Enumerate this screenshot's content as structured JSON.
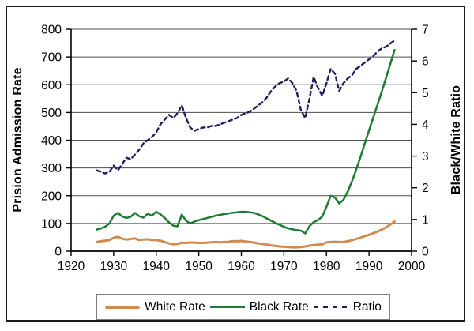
{
  "chart_data": {
    "type": "line",
    "title": "",
    "x": [
      1926,
      1927,
      1928,
      1929,
      1930,
      1931,
      1932,
      1933,
      1934,
      1935,
      1936,
      1937,
      1938,
      1939,
      1940,
      1941,
      1942,
      1943,
      1944,
      1945,
      1946,
      1947,
      1948,
      1949,
      1950,
      1951,
      1952,
      1953,
      1954,
      1955,
      1956,
      1957,
      1958,
      1959,
      1960,
      1961,
      1962,
      1963,
      1964,
      1965,
      1966,
      1967,
      1968,
      1969,
      1970,
      1971,
      1972,
      1973,
      1974,
      1975,
      1976,
      1977,
      1978,
      1979,
      1980,
      1981,
      1982,
      1983,
      1984,
      1985,
      1986,
      1987,
      1988,
      1989,
      1990,
      1991,
      1992,
      1993,
      1994,
      1995,
      1996
    ],
    "series": [
      {
        "name": "White Rate",
        "axis": "left",
        "color": "#d28a4e",
        "style": "solid",
        "width": 3,
        "values": [
          33,
          36,
          38,
          40,
          48,
          52,
          45,
          42,
          44,
          46,
          40,
          42,
          43,
          40,
          40,
          38,
          33,
          28,
          25,
          26,
          31,
          30,
          31,
          31,
          30,
          30,
          31,
          32,
          33,
          32,
          33,
          34,
          36,
          36,
          37,
          35,
          33,
          31,
          28,
          26,
          24,
          21,
          19,
          17,
          16,
          15,
          14,
          14,
          15,
          17,
          20,
          22,
          23,
          25,
          32,
          33,
          34,
          33,
          33,
          36,
          40,
          44,
          49,
          54,
          59,
          65,
          71,
          78,
          86,
          96,
          107
        ]
      },
      {
        "name": "Black Rate",
        "axis": "left",
        "color": "#1e7b33",
        "style": "solid",
        "width": 2.5,
        "values": [
          78,
          82,
          88,
          100,
          128,
          138,
          125,
          120,
          124,
          138,
          126,
          121,
          135,
          128,
          142,
          133,
          120,
          104,
          92,
          90,
          132,
          110,
          100,
          107,
          112,
          116,
          120,
          124,
          128,
          131,
          134,
          136,
          139,
          140,
          142,
          142,
          140,
          138,
          132,
          126,
          118,
          110,
          102,
          95,
          88,
          82,
          79,
          76,
          74,
          64,
          90,
          105,
          112,
          125,
          160,
          200,
          193,
          172,
          185,
          215,
          252,
          295,
          340,
          388,
          435,
          482,
          528,
          576,
          625,
          675,
          725
        ]
      },
      {
        "name": "Ratio",
        "axis": "right",
        "color": "#1f1f5e",
        "style": "dashed",
        "width": 2.4,
        "values": [
          2.55,
          2.5,
          2.45,
          2.5,
          2.7,
          2.55,
          2.75,
          2.95,
          2.9,
          3.05,
          3.2,
          3.4,
          3.5,
          3.6,
          3.75,
          4.0,
          4.15,
          4.3,
          4.2,
          4.35,
          4.6,
          4.2,
          3.9,
          3.8,
          3.85,
          3.9,
          3.9,
          3.95,
          3.95,
          4.0,
          4.05,
          4.1,
          4.15,
          4.2,
          4.3,
          4.35,
          4.4,
          4.5,
          4.6,
          4.7,
          4.85,
          5.05,
          5.2,
          5.3,
          5.35,
          5.45,
          5.3,
          5.05,
          4.45,
          4.2,
          4.8,
          5.5,
          5.15,
          4.9,
          5.3,
          5.75,
          5.6,
          5.05,
          5.3,
          5.45,
          5.55,
          5.75,
          5.85,
          5.95,
          6.05,
          6.15,
          6.3,
          6.4,
          6.45,
          6.55,
          6.65
        ]
      }
    ],
    "left_axis": {
      "label": "Prision Admission Rate",
      "min": 0,
      "max": 800,
      "ticks": [
        0,
        100,
        200,
        300,
        400,
        500,
        600,
        700,
        800
      ]
    },
    "right_axis": {
      "label": "Black/White Ratio",
      "min": 0,
      "max": 7,
      "ticks": [
        0,
        1,
        2,
        3,
        4,
        5,
        6,
        7
      ]
    },
    "x_axis": {
      "label": "",
      "min": 1920,
      "max": 2000,
      "ticks": [
        1920,
        1930,
        1940,
        1950,
        1960,
        1970,
        1980,
        1990,
        2000
      ]
    },
    "grid": "horizontal",
    "legend_position": "bottom",
    "colors": {
      "grid": "#4d4d4d",
      "axis": "#000000",
      "frame": "#1b1b1b",
      "legend_border": "#7f7f7f"
    }
  }
}
